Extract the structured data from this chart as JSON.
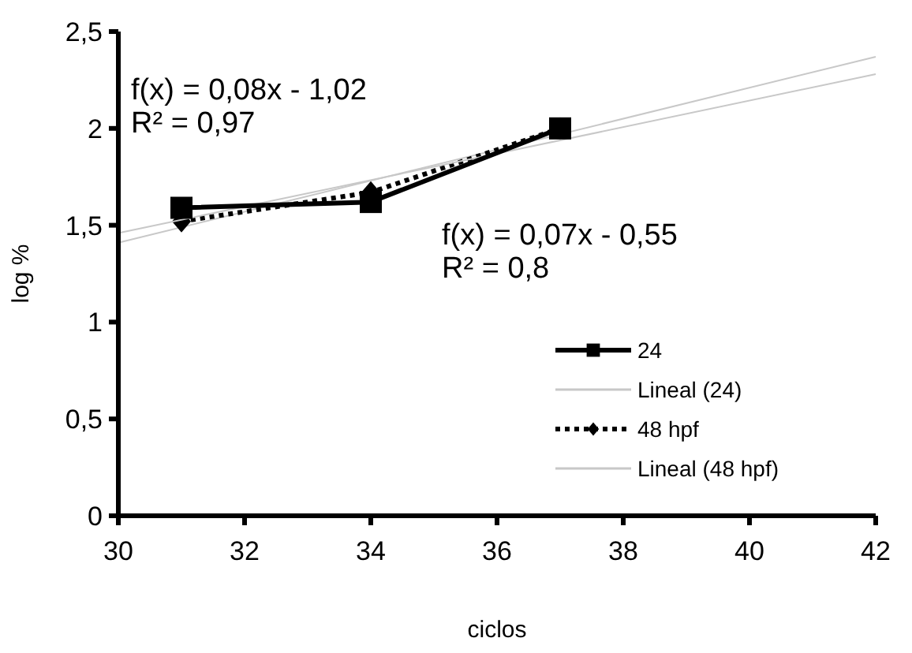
{
  "chart_data": {
    "type": "line",
    "xlabel": "ciclos",
    "ylabel": "log %",
    "xlim": [
      30,
      42
    ],
    "xticks": [
      30,
      32,
      34,
      36,
      38,
      40,
      42
    ],
    "ylim": [
      0,
      2.5
    ],
    "yticks": [
      0,
      {
        "value": 0.5,
        "label": "0,5"
      },
      1,
      {
        "value": 1.5,
        "label": "1,5"
      },
      2,
      {
        "value": 2.5,
        "label": "2,5"
      }
    ],
    "grid": false,
    "legend": "bottom right",
    "series": [
      {
        "name": "24",
        "color": "#000000",
        "x": [
          31,
          34,
          37
        ],
        "values": [
          1.59,
          1.62,
          2.0
        ],
        "marker": "square",
        "line_style": "solid"
      },
      {
        "name": "Lineal (24)",
        "color": "#c8c8c8",
        "x": [
          30,
          42
        ],
        "values": [
          1.46,
          2.28
        ],
        "marker": "none",
        "line_style": "solid"
      },
      {
        "name": "48 hpf",
        "color": "#000000",
        "x": [
          31,
          34,
          37
        ],
        "values": [
          1.52,
          1.67,
          2.0
        ],
        "marker": "diamond",
        "line_style": "dotted"
      },
      {
        "name": "Lineal (48 hpf)",
        "color": "#c8c8c8",
        "x": [
          30,
          42
        ],
        "values": [
          1.41,
          2.37
        ],
        "marker": "none",
        "line_style": "solid"
      }
    ],
    "annotations": [
      "f(x) = 0,08x - 1,02",
      "R² = 0,97",
      "f(x) = 0,07x - 0,55",
      "R² = 0,8"
    ]
  }
}
